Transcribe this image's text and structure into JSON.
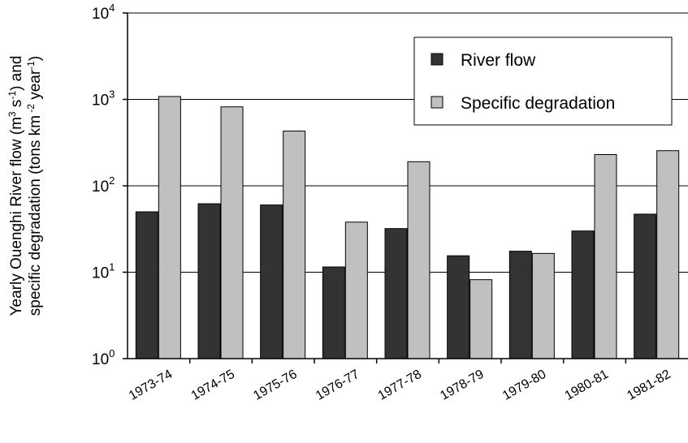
{
  "chart_data": {
    "type": "bar",
    "title": "",
    "xlabel": "",
    "ylabel_line1": "Yearly Ouenghi River flow  (m",
    "ylabel_line1_sup1": "3",
    "ylabel_line1_mid": " s",
    "ylabel_line1_sup2": "-1",
    "ylabel_line1_end": ") and",
    "ylabel_line2": "specific degradation (tons km",
    "ylabel_line2_sup1": " -2",
    "ylabel_line2_mid": " year",
    "ylabel_line2_sup2": "-1",
    "ylabel_line2_end": ")",
    "yscale": "log",
    "ylim": [
      1,
      10000
    ],
    "yticks": [
      {
        "base": "10",
        "exp": "0"
      },
      {
        "base": "10",
        "exp": "1"
      },
      {
        "base": "10",
        "exp": "2"
      },
      {
        "base": "10",
        "exp": "3"
      },
      {
        "base": "10",
        "exp": "4"
      }
    ],
    "grid": "horizontal",
    "legend_position": "top-right",
    "categories": [
      "1973-74",
      "1974-75",
      "1975-76",
      "1976-77",
      "1977-78",
      "1978-79",
      "1979-80",
      "1980-81",
      "1981-82"
    ],
    "series": [
      {
        "name": "River flow",
        "color": "#333333",
        "values": [
          50,
          62,
          60,
          11.5,
          32,
          15.5,
          17.5,
          30,
          47
        ]
      },
      {
        "name": "Specific degradation",
        "color": "#c0c0c0",
        "values": [
          1080,
          820,
          430,
          38,
          190,
          8.2,
          16.5,
          230,
          255
        ]
      }
    ]
  }
}
